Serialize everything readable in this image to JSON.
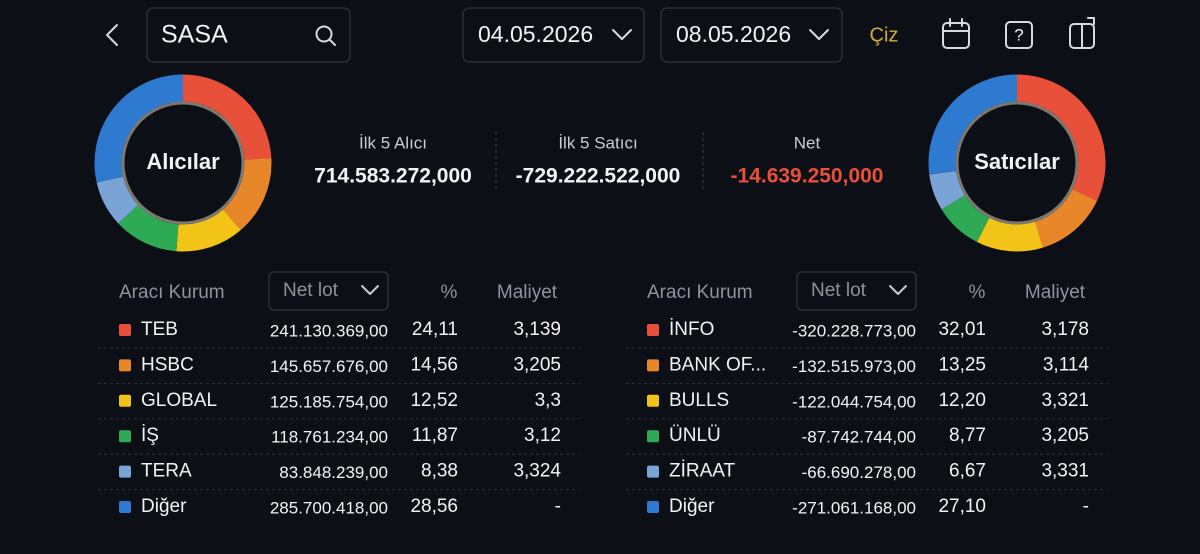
{
  "header": {
    "symbol": "SASA",
    "start_date": "04.05.2026",
    "end_date": "08.05.2026",
    "draw_button": "Çiz"
  },
  "summary": [
    {
      "label": "İlk 5 Alıcı",
      "value": "714.583.272,000"
    },
    {
      "label": "İlk 5 Satıcı",
      "value": "-729.222.522,000"
    },
    {
      "label": "Net",
      "value": "-14.639.250,000"
    }
  ],
  "buyers": {
    "title": "Alıcılar",
    "columns": [
      "Aracı Kurum",
      "Net lot",
      "%",
      "Maliyet"
    ],
    "rows": [
      {
        "name": "TEB",
        "color": "#e8503a",
        "net_lot": "241.130.369,00",
        "share": 24.11,
        "share_label": "24,11",
        "cost": "3,139"
      },
      {
        "name": "HSBC",
        "color": "#e8862a",
        "net_lot": "145.657.676,00",
        "share": 14.56,
        "share_label": "14,56",
        "cost": "3,205"
      },
      {
        "name": "GLOBAL",
        "color": "#f2c418",
        "net_lot": "125.185.754,00",
        "share": 12.52,
        "share_label": "12,52",
        "cost": "3,3"
      },
      {
        "name": "İŞ",
        "color": "#2eaa55",
        "net_lot": "118.761.234,00",
        "share": 11.87,
        "share_label": "11,87",
        "cost": "3,12"
      },
      {
        "name": "TERA",
        "color": "#7ba4d6",
        "net_lot": "83.848.239,00",
        "share": 8.38,
        "share_label": "8,38",
        "cost": "3,324"
      },
      {
        "name": "Diğer",
        "color": "#2f7ad1",
        "net_lot": "285.700.418,00",
        "share": 28.56,
        "share_label": "28,56",
        "cost": "-"
      }
    ]
  },
  "sellers": {
    "title": "Satıcılar",
    "columns": [
      "Aracı Kurum",
      "Net lot",
      "%",
      "Maliyet"
    ],
    "rows": [
      {
        "name": "İNFO",
        "color": "#e8503a",
        "net_lot": "-320.228.773,00",
        "share": 32.01,
        "share_label": "32,01",
        "cost": "3,178"
      },
      {
        "name": "BANK OF...",
        "color": "#e8862a",
        "net_lot": "-132.515.973,00",
        "share": 13.25,
        "share_label": "13,25",
        "cost": "3,114"
      },
      {
        "name": "BULLS",
        "color": "#f2c418",
        "net_lot": "-122.044.754,00",
        "share": 12.2,
        "share_label": "12,20",
        "cost": "3,321"
      },
      {
        "name": "ÜNLÜ",
        "color": "#2eaa55",
        "net_lot": "-87.742.744,00",
        "share": 8.77,
        "share_label": "8,77",
        "cost": "3,205"
      },
      {
        "name": "ZİRAAT",
        "color": "#7ba4d6",
        "net_lot": "-66.690.278,00",
        "share": 6.67,
        "share_label": "6,67",
        "cost": "3,331"
      },
      {
        "name": "Diğer",
        "color": "#2f7ad1",
        "net_lot": "-271.061.168,00",
        "share": 27.1,
        "share_label": "27,10",
        "cost": "-"
      }
    ]
  }
}
